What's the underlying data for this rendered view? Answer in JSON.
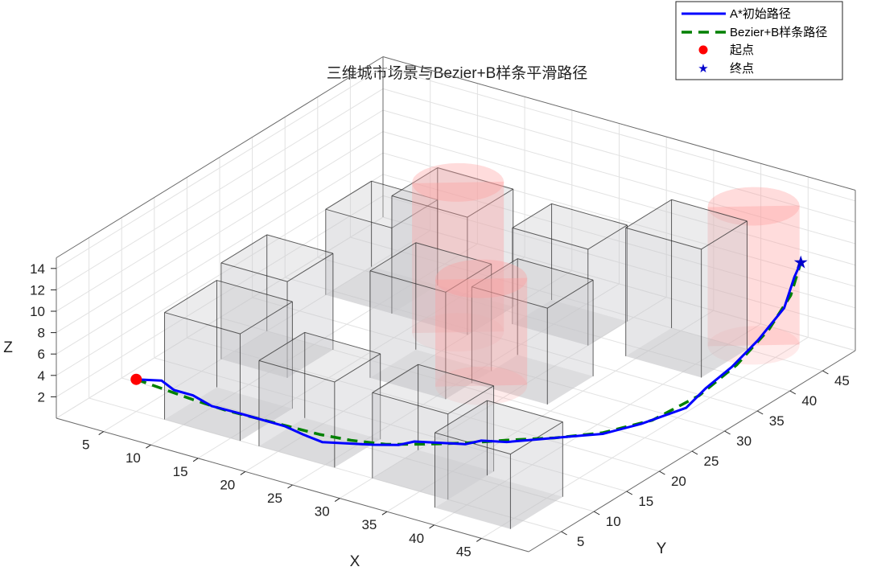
{
  "chart_data": {
    "type": "line",
    "title": "三维城市场景与Bezier+B样条平滑路径",
    "xlabel": "X",
    "ylabel": "Y",
    "zlabel": "Z",
    "xlim": [
      0,
      50
    ],
    "ylim": [
      0,
      50
    ],
    "zlim": [
      0,
      15
    ],
    "xticks": [
      5,
      10,
      15,
      20,
      25,
      30,
      35,
      40,
      45
    ],
    "yticks": [
      5,
      10,
      15,
      20,
      25,
      30,
      35,
      40,
      45
    ],
    "zticks": [
      2,
      4,
      6,
      8,
      10,
      12,
      14
    ],
    "grid": true,
    "legend_position": "top-right",
    "colors": {
      "astar": "#0000ff",
      "smooth": "#008000",
      "start": "#ff0000",
      "goal": "#0000cc",
      "building_face": "#c8c8cc",
      "cylinder": "#ff9a9a"
    },
    "series": [
      {
        "name": "A*初始路径",
        "style": "solid",
        "points": [
          [
            5,
            5,
            3
          ],
          [
            7,
            6,
            3
          ],
          [
            9,
            5,
            3
          ],
          [
            11,
            5,
            3
          ],
          [
            13,
            5,
            2.5
          ],
          [
            15,
            6,
            2
          ],
          [
            16,
            6,
            2
          ],
          [
            18,
            6,
            2
          ],
          [
            20,
            6,
            2
          ],
          [
            22,
            6,
            1.7
          ],
          [
            24,
            6,
            1.5
          ],
          [
            26,
            7,
            1.5
          ],
          [
            28,
            8,
            1.5
          ],
          [
            30,
            9,
            1.6
          ],
          [
            31,
            10,
            1.8
          ],
          [
            33,
            11,
            1.8
          ],
          [
            35,
            12,
            1.8
          ],
          [
            36,
            13,
            2
          ],
          [
            38,
            14,
            2
          ],
          [
            40,
            16,
            2
          ],
          [
            41,
            17,
            2
          ],
          [
            42,
            18,
            2
          ],
          [
            44,
            20,
            2
          ],
          [
            46,
            23,
            2.3
          ],
          [
            48,
            27,
            2.8
          ],
          [
            48,
            30,
            3.5
          ],
          [
            48,
            34,
            4
          ],
          [
            48,
            38,
            5
          ],
          [
            48,
            42,
            6.5
          ],
          [
            47,
            45,
            8
          ],
          [
            47,
            46,
            9
          ]
        ]
      },
      {
        "name": "Bezier+B样条路径",
        "style": "dashed",
        "points": [
          [
            5,
            5,
            3
          ],
          [
            8,
            5,
            2.8
          ],
          [
            11,
            5,
            2.6
          ],
          [
            14,
            5.5,
            2.2
          ],
          [
            17,
            6,
            2
          ],
          [
            20,
            6.5,
            1.8
          ],
          [
            23,
            7,
            1.6
          ],
          [
            26,
            7.5,
            1.6
          ],
          [
            29,
            8.5,
            1.6
          ],
          [
            32,
            10,
            1.8
          ],
          [
            35,
            12,
            1.9
          ],
          [
            38,
            14.5,
            2
          ],
          [
            41,
            17,
            2
          ],
          [
            44,
            20,
            2.1
          ],
          [
            46.5,
            24,
            2.4
          ],
          [
            48,
            29,
            3.2
          ],
          [
            48.5,
            34,
            4.3
          ],
          [
            48.5,
            39,
            5.8
          ],
          [
            48,
            43,
            7.3
          ],
          [
            47,
            46,
            9
          ]
        ]
      }
    ],
    "markers": [
      {
        "name": "起点",
        "point": [
          5,
          5,
          3
        ]
      },
      {
        "name": "终点",
        "point": [
          47,
          46,
          9
        ]
      }
    ],
    "buildings": [
      {
        "x": [
          8,
          16
        ],
        "y": [
          5,
          13
        ],
        "h": 10
      },
      {
        "x": [
          18,
          26
        ],
        "y": [
          5,
          12
        ],
        "h": 8
      },
      {
        "x": [
          30,
          38
        ],
        "y": [
          5,
          12
        ],
        "h": 8
      },
      {
        "x": [
          38,
          46
        ],
        "y": [
          3,
          11
        ],
        "h": 7
      },
      {
        "x": [
          5,
          12
        ],
        "y": [
          18,
          25
        ],
        "h": 9
      },
      {
        "x": [
          18,
          26
        ],
        "y": [
          22,
          29
        ],
        "h": 10
      },
      {
        "x": [
          26,
          34
        ],
        "y": [
          26,
          33
        ],
        "h": 9
      },
      {
        "x": [
          12,
          20
        ],
        "y": [
          34,
          41
        ],
        "h": 11
      },
      {
        "x": [
          22,
          30
        ],
        "y": [
          38,
          44
        ],
        "h": 9
      },
      {
        "x": [
          34,
          42
        ],
        "y": [
          38,
          45
        ],
        "h": 12
      },
      {
        "x": [
          5,
          12
        ],
        "y": [
          34,
          41
        ],
        "h": 8
      }
    ],
    "cylinders": [
      {
        "cx": 19,
        "cy": 34,
        "r": 4,
        "h": 14
      },
      {
        "cx": 27,
        "cy": 26,
        "r": 4,
        "h": 10
      },
      {
        "cx": 42,
        "cy": 46,
        "r": 4,
        "h": 13
      }
    ]
  }
}
